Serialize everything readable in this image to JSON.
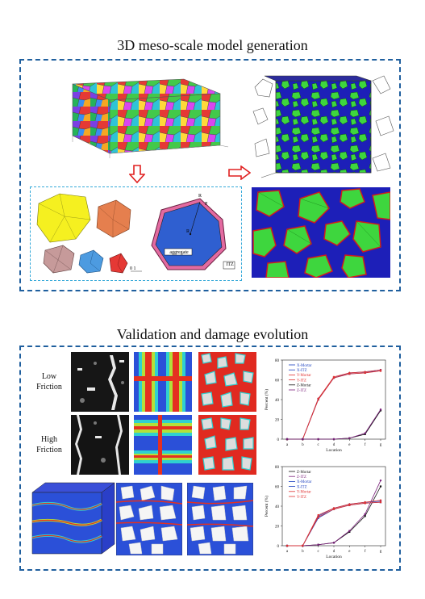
{
  "top_section": {
    "title": "3D meso-scale model generation",
    "detail_labels": {
      "aggregate": "aggregate",
      "itz": "ITZ",
      "r_i": "R",
      "p_i": "P",
      "r": "R",
      "scale_bar": "0   1"
    }
  },
  "bottom_section": {
    "title": "Validation and damage evolution",
    "rows": [
      {
        "label": "Low\nFriction"
      },
      {
        "label": "High\nFriction"
      }
    ],
    "chart_top_legend": [
      "X-Mortar",
      "X-ITZ",
      "Y-Mortar",
      "Y-ITZ",
      "Z-Mortar",
      "Z-ITZ"
    ],
    "chart_bottom_legend": [
      "Z-Mortar",
      "Z-ITZ",
      "X-Mortar",
      "X-ITZ",
      "Y-Mortar",
      "Y-ITZ"
    ]
  },
  "colors": {
    "frame": "#1f5f9e",
    "inner_frame": "#35a9d9",
    "arrow": "#e02020"
  },
  "chart_data": [
    {
      "type": "line",
      "x": [
        "a",
        "b",
        "c",
        "d",
        "e",
        "f",
        "g"
      ],
      "xlabel": "Location",
      "ylabel": "Percent (%)",
      "ylim": [
        0,
        80
      ],
      "yticks": [
        0,
        20,
        40,
        60,
        80
      ],
      "series": [
        {
          "name": "X-Mortar",
          "values": [
            0,
            0,
            40,
            62,
            66,
            67,
            70
          ],
          "color": "#1a3fbf"
        },
        {
          "name": "X-ITZ",
          "values": [
            0,
            0,
            41,
            62,
            67,
            68,
            70
          ],
          "color": "#1a3fbf"
        },
        {
          "name": "Y-Mortar",
          "values": [
            0,
            0,
            40,
            62,
            66,
            67,
            69
          ],
          "color": "#e03030"
        },
        {
          "name": "Y-ITZ",
          "values": [
            0,
            0,
            41,
            63,
            67,
            68,
            70
          ],
          "color": "#e03030"
        },
        {
          "name": "Z-Mortar",
          "values": [
            0,
            0,
            0,
            0,
            1,
            5,
            29
          ],
          "color": "#111111"
        },
        {
          "name": "Z-ITZ",
          "values": [
            0,
            0,
            0,
            0,
            1,
            6,
            30
          ],
          "color": "#7a1f7a"
        }
      ]
    },
    {
      "type": "line",
      "x": [
        "a",
        "b",
        "c",
        "d",
        "e",
        "f",
        "g"
      ],
      "xlabel": "Location",
      "ylabel": "Percent (%)",
      "ylim": [
        0,
        80
      ],
      "yticks": [
        0,
        20,
        40,
        60,
        80
      ],
      "series": [
        {
          "name": "Z-Mortar",
          "values": [
            0,
            0,
            1,
            3,
            14,
            30,
            60
          ],
          "color": "#111111"
        },
        {
          "name": "Z-ITZ",
          "values": [
            0,
            0,
            1,
            3,
            15,
            32,
            66
          ],
          "color": "#7a1f7a"
        },
        {
          "name": "X-Mortar",
          "values": [
            0,
            0,
            28,
            37,
            41,
            43,
            44
          ],
          "color": "#1a3fbf"
        },
        {
          "name": "X-ITZ",
          "values": [
            0,
            0,
            30,
            38,
            42,
            44,
            45
          ],
          "color": "#1a3fbf"
        },
        {
          "name": "Y-Mortar",
          "values": [
            0,
            0,
            29,
            37,
            41,
            43,
            44
          ],
          "color": "#e03030"
        },
        {
          "name": "Y-ITZ",
          "values": [
            0,
            0,
            31,
            38,
            42,
            44,
            46
          ],
          "color": "#e03030"
        }
      ]
    }
  ]
}
